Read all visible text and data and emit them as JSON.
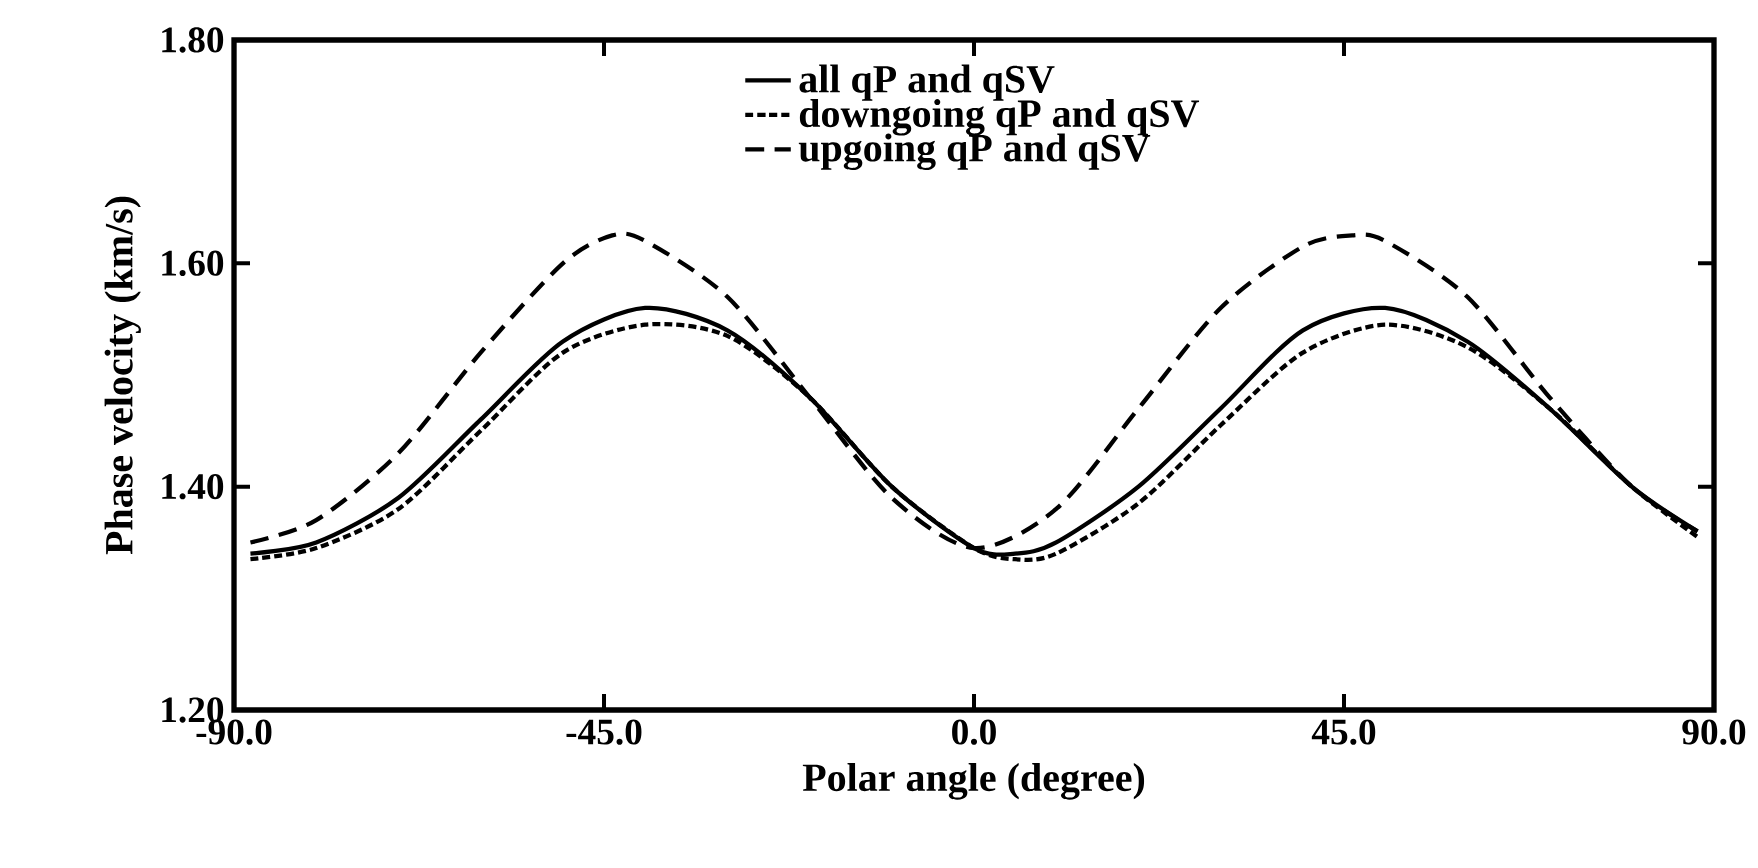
{
  "chart_data": {
    "type": "line",
    "xlabel": "Polar angle (degree)",
    "ylabel": "Phase velocity (km/s)",
    "xlim": [
      -90,
      90
    ],
    "ylim": [
      1.2,
      1.8
    ],
    "xticks": [
      {
        "value": -90,
        "label": "-90.0"
      },
      {
        "value": -45,
        "label": "-45.0"
      },
      {
        "value": 0,
        "label": "0.0"
      },
      {
        "value": 45,
        "label": "45.0"
      },
      {
        "value": 90,
        "label": "90.0"
      }
    ],
    "yticks": [
      {
        "value": 1.2,
        "label": "1.20"
      },
      {
        "value": 1.4,
        "label": "1.40"
      },
      {
        "value": 1.6,
        "label": "1.60"
      },
      {
        "value": 1.8,
        "label": "1.80"
      }
    ],
    "legend": "top",
    "grid": false,
    "series": [
      {
        "name": "all qP and qSV",
        "color": "#000000",
        "line_style": "solid",
        "x": [
          -88,
          -80,
          -70,
          -60,
          -50,
          -40,
          -30,
          -20,
          -10,
          0,
          5,
          10,
          20,
          30,
          40,
          50,
          60,
          70,
          80,
          88
        ],
        "values": [
          1.34,
          1.35,
          1.39,
          1.46,
          1.53,
          1.56,
          1.54,
          1.48,
          1.4,
          1.345,
          1.34,
          1.35,
          1.4,
          1.47,
          1.54,
          1.56,
          1.53,
          1.47,
          1.4,
          1.36
        ]
      },
      {
        "name": "downgoing qP and qSV",
        "color": "#000000",
        "line_style": "dotted",
        "x": [
          -88,
          -80,
          -70,
          -60,
          -50,
          -40,
          -30,
          -20,
          -10,
          0,
          5,
          10,
          20,
          30,
          40,
          50,
          60,
          70,
          80,
          88
        ],
        "values": [
          1.335,
          1.345,
          1.38,
          1.45,
          1.52,
          1.545,
          1.535,
          1.48,
          1.4,
          1.345,
          1.335,
          1.34,
          1.385,
          1.455,
          1.52,
          1.545,
          1.525,
          1.47,
          1.4,
          1.355
        ]
      },
      {
        "name": "upgoing qP and qSV",
        "color": "#000000",
        "line_style": "dashed",
        "x": [
          -88,
          -80,
          -70,
          -60,
          -50,
          -44,
          -40,
          -30,
          -20,
          -10,
          0,
          10,
          20,
          30,
          40,
          46,
          50,
          60,
          70,
          80,
          88
        ],
        "values": [
          1.35,
          1.37,
          1.43,
          1.52,
          1.6,
          1.625,
          1.62,
          1.57,
          1.48,
          1.39,
          1.345,
          1.38,
          1.47,
          1.56,
          1.615,
          1.625,
          1.62,
          1.57,
          1.48,
          1.4,
          1.36
        ]
      }
    ]
  }
}
